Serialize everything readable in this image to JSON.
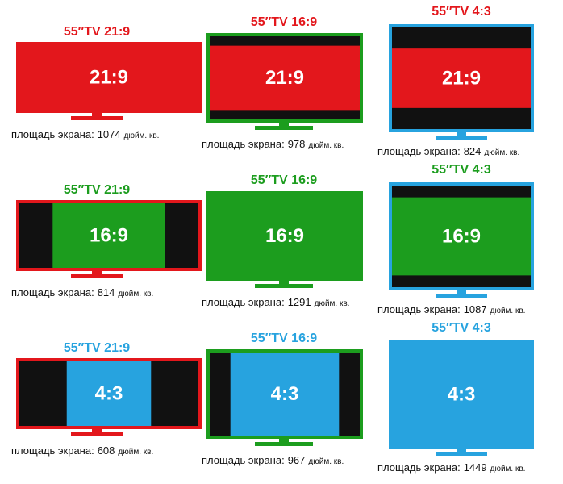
{
  "cells": [
    [
      {
        "title": "55″TV 21:9",
        "label": "21:9",
        "area_label": "площадь экрана:",
        "area": "1074",
        "unit": "дюйм. кв."
      },
      {
        "title": "55″TV 16:9",
        "label": "21:9",
        "area_label": "площадь экрана:",
        "area": "978",
        "unit": "дюйм. кв."
      },
      {
        "title": "55″TV 4:3",
        "label": "21:9",
        "area_label": "площадь экрана:",
        "area": "824",
        "unit": "дюйм. кв."
      }
    ],
    [
      {
        "title": "55″TV 21:9",
        "label": "16:9",
        "area_label": "площадь экрана:",
        "area": "814",
        "unit": "дюйм. кв."
      },
      {
        "title": "55″TV 16:9",
        "label": "16:9",
        "area_label": "площадь экрана:",
        "area": "1291",
        "unit": "дюйм. кв."
      },
      {
        "title": "55″TV 4:3",
        "label": "16:9",
        "area_label": "площадь экрана:",
        "area": "1087",
        "unit": "дюйм. кв."
      }
    ],
    [
      {
        "title": "55″TV 21:9",
        "label": "4:3",
        "area_label": "площадь экрана:",
        "area": "608",
        "unit": "дюйм. кв."
      },
      {
        "title": "55″TV 16:9",
        "label": "4:3",
        "area_label": "площадь экрана:",
        "area": "967",
        "unit": "дюйм. кв."
      },
      {
        "title": "55″TV 4:3",
        "label": "4:3",
        "area_label": "площадь экрана:",
        "area": "1449",
        "unit": "дюйм. кв."
      }
    ]
  ]
}
